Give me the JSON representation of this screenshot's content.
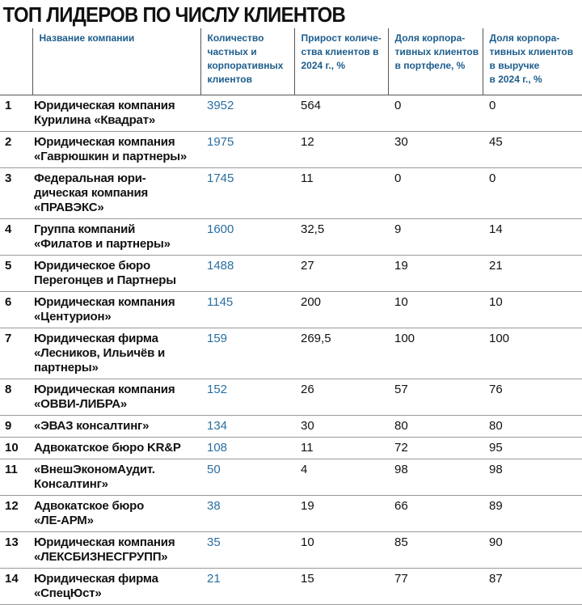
{
  "title": "ТОП ЛИДЕРОВ ПО ЧИСЛУ КЛИЕНТОВ",
  "table": {
    "header": [
      "",
      "Название компании",
      "Количество\nчастных и\nкорпоративных\nклиентов",
      "Прирост количе-\nства клиентов в\n2024 г., %",
      "Доля корпора-\nтивных клиентов\nв портфеле, %",
      "Доля корпора-\nтивных клиентов\nв выручке\nв 2024 г., %"
    ],
    "rows": [
      [
        1,
        "Юридическая компания\nКурилина «Квадрат»",
        3952,
        564,
        0,
        0
      ],
      [
        2,
        "Юридическая компания\n«Гаврюшкин и партнеры»",
        1975,
        12,
        30,
        45
      ],
      [
        3,
        "Федеральная юри-\nдическая компания\n«ПРАВЭКС»",
        1745,
        11,
        0,
        0
      ],
      [
        4,
        "Группа компаний\n«Филатов и партнеры»",
        1600,
        "32,5",
        9,
        14
      ],
      [
        5,
        "Юридическое бюро\nПерегонцев и Партнеры",
        1488,
        27,
        19,
        21
      ],
      [
        6,
        "Юридическая компания\n«Центурион»",
        1145,
        200,
        10,
        10
      ],
      [
        7,
        "Юридическая фирма\n«Лесников, Ильичёв и\nпартнеры»",
        159,
        "269,5",
        100,
        100
      ],
      [
        8,
        "Юридическая компания\n«ОВВИ-ЛИБРА»",
        152,
        26,
        57,
        76
      ],
      [
        9,
        "«ЭВАЗ консалтинг»",
        134,
        30,
        80,
        80
      ],
      [
        10,
        "Адвокатское бюро KR&P",
        108,
        11,
        72,
        95
      ],
      [
        11,
        "«ВнешЭкономАудит.\nКонсалтинг»",
        50,
        4,
        98,
        98
      ],
      [
        12,
        "Адвокатское бюро\n«ЛЕ-АРМ»",
        38,
        19,
        66,
        89
      ],
      [
        13,
        "Юридическая компания\n«ЛЕКСБИЗНЕСГРУПП»",
        35,
        10,
        85,
        90
      ],
      [
        14,
        "Юридическая фирма\n«СпецЮст»",
        21,
        15,
        77,
        87
      ]
    ]
  }
}
